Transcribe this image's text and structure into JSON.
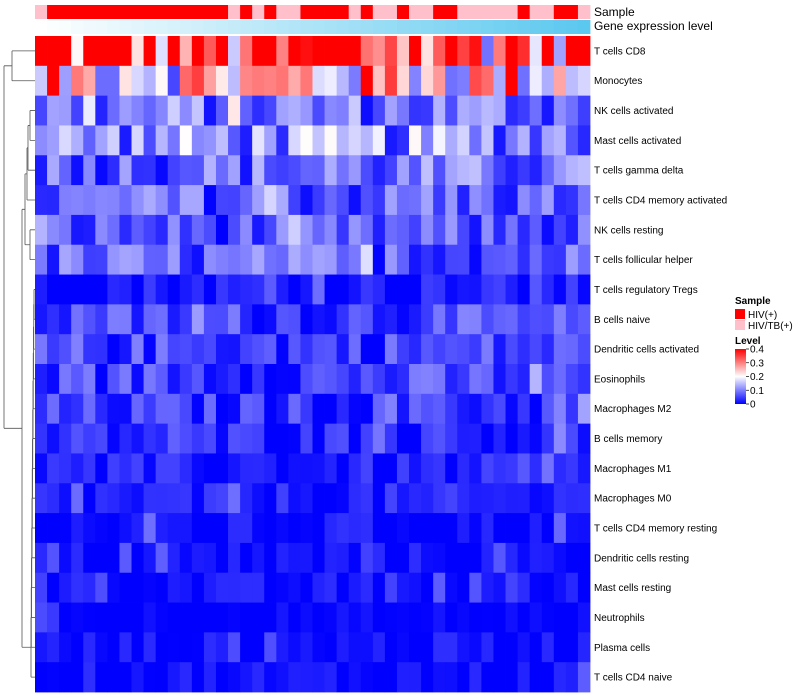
{
  "chart_data": {
    "type": "heatmap",
    "annotation_labels": [
      "Sample",
      "Gene expression level"
    ],
    "rows": [
      "T cells CD8",
      "Monocytes",
      "NK cells activated",
      "Mast cells activated",
      "T cells gamma delta",
      "T cells CD4 memory activated",
      "NK cells resting",
      "T cells follicular helper",
      "T cells regulatory  Tregs",
      "B cells naive",
      "Dendritic cells activated",
      "Eosinophils",
      "Macrophages M2",
      "B cells memory",
      "Macrophages M1",
      "Macrophages M0",
      "T cells CD4 memory resting",
      "Dendritic cells resting",
      "Mast cells resting",
      "Neutrophils",
      "Plasma cells",
      "T cells CD4 naive"
    ],
    "row_means": [
      0.33,
      0.24,
      0.09,
      0.11,
      0.08,
      0.07,
      0.06,
      0.07,
      0.02,
      0.05,
      0.05,
      0.05,
      0.04,
      0.03,
      0.02,
      0.02,
      0.01,
      0.01,
      0.01,
      0.0,
      0.01,
      0.01
    ],
    "n_samples": 46,
    "sample_groups": [
      "HIV/TB(+)",
      "HIV(+)",
      "HIV(+)",
      "HIV(+)",
      "HIV(+)",
      "HIV(+)",
      "HIV(+)",
      "HIV(+)",
      "HIV(+)",
      "HIV(+)",
      "HIV(+)",
      "HIV(+)",
      "HIV(+)",
      "HIV(+)",
      "HIV(+)",
      "HIV(+)",
      "HIV/TB(+)",
      "HIV(+)",
      "HIV/TB(+)",
      "HIV(+)",
      "HIV/TB(+)",
      "HIV/TB(+)",
      "HIV(+)",
      "HIV(+)",
      "HIV(+)",
      "HIV(+)",
      "HIV/TB(+)",
      "HIV(+)",
      "HIV/TB(+)",
      "HIV/TB(+)",
      "HIV(+)",
      "HIV/TB(+)",
      "HIV/TB(+)",
      "HIV(+)",
      "HIV(+)",
      "HIV/TB(+)",
      "HIV/TB(+)",
      "HIV/TB(+)",
      "HIV/TB(+)",
      "HIV/TB(+)",
      "HIV(+)",
      "HIV/TB(+)",
      "HIV/TB(+)",
      "HIV(+)",
      "HIV(+)",
      "HIV/TB(+)"
    ],
    "legend_sample": {
      "title": "Sample",
      "entries": [
        {
          "label": "HIV(+)",
          "color": "#ff0000"
        },
        {
          "label": "HIV/TB(+)",
          "color": "#ffc0cb"
        }
      ]
    },
    "legend_level": {
      "title": "Level",
      "ticks": [
        "0.4",
        "0.3",
        "0.2",
        "0.1",
        "0"
      ],
      "range": [
        0,
        0.4
      ],
      "colors": [
        "#0000ff",
        "#ffffff",
        "#ff0000"
      ]
    },
    "gene_expression_gradient": [
      "#ffffff",
      "#5bc8ef"
    ]
  }
}
